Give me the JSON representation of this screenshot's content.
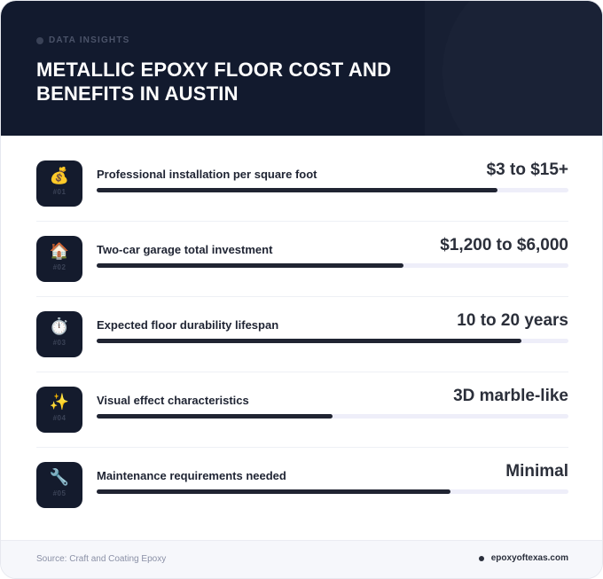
{
  "header": {
    "kicker": "DATA INSIGHTS",
    "title": "METALLIC EPOXY FLOOR COST AND BENEFITS IN AUSTIN"
  },
  "rows": [
    {
      "icon": "money-bag-icon",
      "emoji": "💰",
      "number": "#01",
      "label": "Professional installation per square foot",
      "value": "$3 to $15+",
      "progress": 0.85
    },
    {
      "icon": "house-icon",
      "emoji": "🏠",
      "number": "#02",
      "label": "Two-car garage total investment",
      "value": "$1,200 to $6,000",
      "progress": 0.65
    },
    {
      "icon": "stopwatch-icon",
      "emoji": "⏱️",
      "number": "#03",
      "label": "Expected floor durability lifespan",
      "value": "10 to 20 years",
      "progress": 0.9
    },
    {
      "icon": "sparkles-icon",
      "emoji": "✨",
      "number": "#04",
      "label": "Visual effect characteristics",
      "value": "3D marble-like",
      "progress": 0.5
    },
    {
      "icon": "wrench-icon",
      "emoji": "🔧",
      "number": "#05",
      "label": "Maintenance requirements needed",
      "value": "Minimal",
      "progress": 0.75
    }
  ],
  "footer": {
    "source": "Source: Craft and Coating Epoxy",
    "site": "epoxyoftexas.com"
  }
}
